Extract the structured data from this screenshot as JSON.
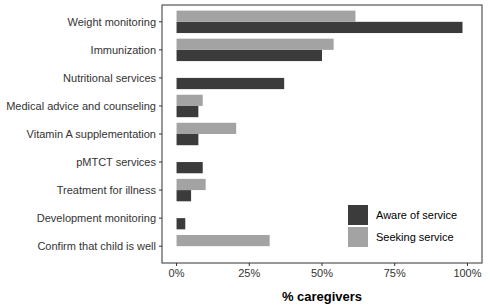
{
  "chart_data": {
    "type": "bar",
    "orientation": "horizontal",
    "x_label": "% caregivers",
    "categories": [
      "Weight monitoring",
      "Immunization",
      "Nutritional services",
      "Medical advice and counseling",
      "Vitamin A supplementation",
      "pMTCT services",
      "Treatment for illness",
      "Development monitoring",
      "Confirm that child is well"
    ],
    "series": [
      {
        "name": "Aware of service",
        "color": "#3b3b3b",
        "values": [
          98.3,
          50,
          37,
          7.5,
          7.5,
          9,
          5,
          3,
          0
        ]
      },
      {
        "name": "Seeking service",
        "color": "#a3a3a3",
        "values": [
          61.5,
          54,
          0,
          9,
          20.5,
          0,
          10,
          0,
          32
        ]
      }
    ],
    "xlim": [
      -5,
      105
    ],
    "xticks": [
      {
        "value": 0,
        "label": "0%"
      },
      {
        "value": 25,
        "label": "25%"
      },
      {
        "value": 50,
        "label": "50%"
      },
      {
        "value": 75,
        "label": "75%"
      },
      {
        "value": 100,
        "label": "100%"
      }
    ],
    "grid": false,
    "legend": "bottom-right"
  }
}
